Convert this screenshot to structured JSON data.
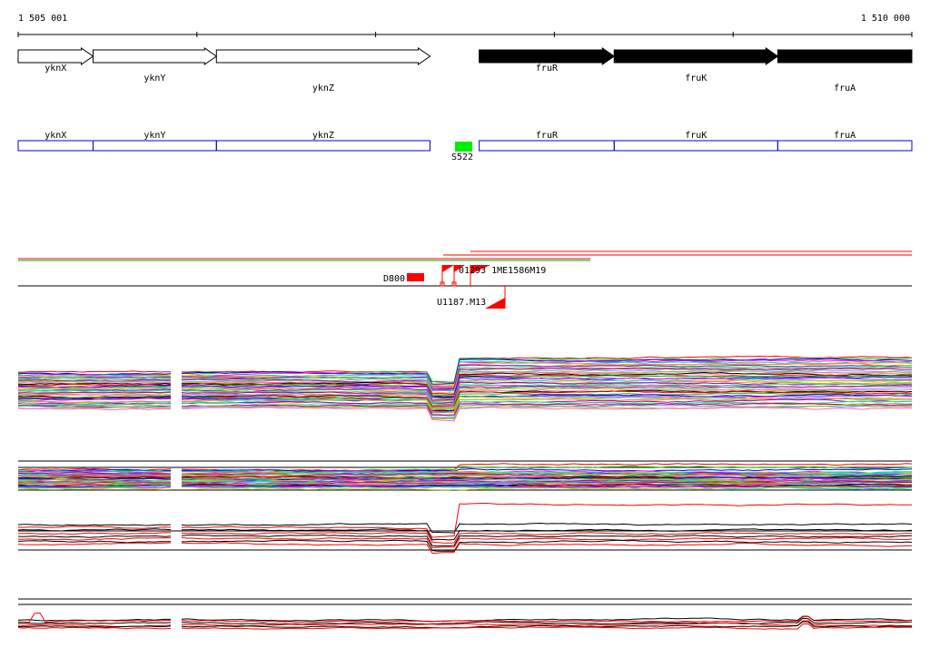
{
  "coordinates": {
    "start_label": "1 505 001",
    "end_label": "1 510 000",
    "start": 1505001,
    "end": 1510000
  },
  "genes": [
    {
      "name": "yknX",
      "start": 1505001,
      "end": 1505420,
      "strand": "+",
      "fill": "white"
    },
    {
      "name": "yknY",
      "start": 1505420,
      "end": 1506110,
      "strand": "+",
      "fill": "white"
    },
    {
      "name": "yknZ",
      "start": 1506110,
      "end": 1507305,
      "strand": "+",
      "fill": "white"
    },
    {
      "name": "fruR",
      "start": 1507580,
      "end": 1508335,
      "strand": "+",
      "fill": "black"
    },
    {
      "name": "fruK",
      "start": 1508335,
      "end": 1509250,
      "strand": "+",
      "fill": "black"
    },
    {
      "name": "fruA",
      "start": 1509250,
      "end": 1510000,
      "strand": "+",
      "fill": "black"
    }
  ],
  "segments": [
    {
      "name": "yknX",
      "start": 1505001,
      "end": 1505420
    },
    {
      "name": "yknY",
      "start": 1505420,
      "end": 1506110
    },
    {
      "name": "yknZ",
      "start": 1506110,
      "end": 1507305
    },
    {
      "name": "fruR",
      "start": 1507580,
      "end": 1508335
    },
    {
      "name": "fruK",
      "start": 1508335,
      "end": 1509250
    },
    {
      "name": "fruA",
      "start": 1509250,
      "end": 1510000
    }
  ],
  "regulatory_element": {
    "name": "S522",
    "start": 1507440,
    "end": 1507540
  },
  "conditions": [
    {
      "name": "D800"
    },
    {
      "name": "U1187.M13"
    },
    {
      "name": "01293"
    },
    {
      "name": "1ME"
    },
    {
      "name": "1586"
    },
    {
      "name": "M19"
    }
  ],
  "condition_label_overlap": "01293 1ME1586M19",
  "colors": {
    "segment_outline": "#0000cc",
    "regulatory_fill": "#00ee00",
    "condition_fill": "#ff0000",
    "axis": "#000000",
    "profile_palette": [
      "#ff0000",
      "#00cc00",
      "#0000ff",
      "#ff00ff",
      "#00cccc",
      "#cccc00",
      "#ff8800",
      "#8800ff",
      "#00ff88",
      "#888888",
      "#cc0066",
      "#6699ff",
      "#99cc00",
      "#ff66cc",
      "#000000"
    ]
  }
}
